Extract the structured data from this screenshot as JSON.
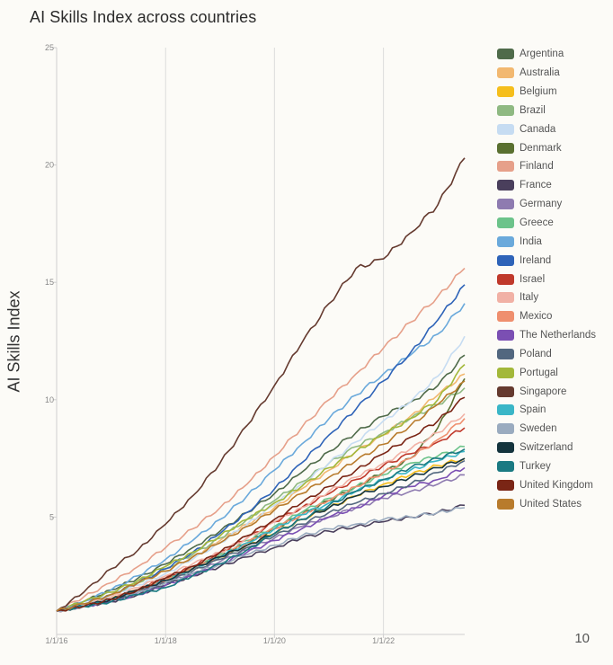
{
  "chart_data": {
    "type": "line",
    "title": "AI Skills Index across countries",
    "ylabel": "AI Skills Index",
    "xlabel": "",
    "ylim": [
      0,
      25
    ],
    "y_ticks": [
      "5",
      "10",
      "15",
      "20",
      "25"
    ],
    "x_ticks": [
      "1/1/16",
      "1/1/18",
      "1/1/20",
      "1/1/22"
    ],
    "x_range": [
      "2016-01-01",
      "2023-06-30"
    ],
    "grid": "vertical at x ticks",
    "legend_position": "right",
    "x": [
      "2016-01-01",
      "2016-07-01",
      "2017-01-01",
      "2017-07-01",
      "2018-01-01",
      "2018-07-01",
      "2019-01-01",
      "2019-07-01",
      "2020-01-01",
      "2020-07-01",
      "2021-01-01",
      "2021-07-01",
      "2022-01-01",
      "2022-07-01",
      "2023-01-01",
      "2023-06-30"
    ],
    "series": [
      {
        "name": "Argentina",
        "color": "#4f6b4a",
        "values": [
          1.0,
          1.4,
          1.9,
          2.4,
          3.0,
          3.7,
          4.4,
          5.2,
          6.0,
          6.9,
          7.8,
          8.6,
          9.3,
          9.9,
          10.6,
          11.9
        ]
      },
      {
        "name": "Australia",
        "color": "#f2b870",
        "values": [
          1.0,
          1.3,
          1.7,
          2.2,
          2.7,
          3.3,
          4.0,
          4.7,
          5.4,
          6.2,
          7.0,
          7.8,
          8.5,
          9.3,
          10.2,
          11.1
        ]
      },
      {
        "name": "Belgium",
        "color": "#f5be1c",
        "values": [
          1.0,
          1.2,
          1.5,
          1.9,
          2.3,
          2.8,
          3.3,
          3.8,
          4.3,
          4.9,
          5.4,
          5.9,
          6.4,
          6.8,
          7.2,
          7.5
        ]
      },
      {
        "name": "Brazil",
        "color": "#8fb982",
        "values": [
          1.0,
          1.3,
          1.7,
          2.2,
          2.8,
          3.4,
          4.1,
          4.9,
          5.7,
          6.5,
          7.3,
          8.0,
          8.6,
          9.2,
          9.8,
          10.5
        ]
      },
      {
        "name": "Canada",
        "color": "#c6dcf2",
        "values": [
          1.0,
          1.3,
          1.7,
          2.1,
          2.6,
          3.2,
          3.9,
          4.7,
          5.5,
          6.4,
          7.3,
          8.2,
          9.1,
          9.9,
          11.0,
          12.7
        ]
      },
      {
        "name": "Denmark",
        "color": "#5a7030",
        "values": [
          1.0,
          1.2,
          1.5,
          1.9,
          2.3,
          2.8,
          3.3,
          3.9,
          4.5,
          5.1,
          5.7,
          6.3,
          6.9,
          7.5,
          8.8,
          10.9
        ]
      },
      {
        "name": "Finland",
        "color": "#e6a08a",
        "values": [
          1.0,
          1.6,
          2.2,
          2.9,
          3.7,
          4.5,
          5.4,
          6.4,
          7.6,
          8.8,
          10.0,
          11.1,
          12.2,
          13.3,
          14.4,
          15.6
        ]
      },
      {
        "name": "France",
        "color": "#4a3f5c",
        "values": [
          1.0,
          1.2,
          1.4,
          1.7,
          2.1,
          2.5,
          2.9,
          3.3,
          3.7,
          4.1,
          4.4,
          4.6,
          4.8,
          5.0,
          5.2,
          5.5
        ]
      },
      {
        "name": "Germany",
        "color": "#8e7bb0",
        "values": [
          1.0,
          1.2,
          1.5,
          1.8,
          2.2,
          2.6,
          3.1,
          3.6,
          4.1,
          4.6,
          5.0,
          5.4,
          5.8,
          6.1,
          6.4,
          6.8
        ]
      },
      {
        "name": "Greece",
        "color": "#6cc38a",
        "values": [
          1.0,
          1.2,
          1.5,
          1.9,
          2.3,
          2.8,
          3.4,
          4.0,
          4.6,
          5.2,
          5.8,
          6.3,
          6.8,
          7.3,
          7.6,
          8.0
        ]
      },
      {
        "name": "India",
        "color": "#6aa9db",
        "values": [
          1.0,
          1.4,
          1.9,
          2.5,
          3.2,
          4.0,
          4.9,
          5.9,
          7.0,
          8.1,
          9.2,
          10.2,
          11.1,
          11.9,
          12.8,
          14.1
        ]
      },
      {
        "name": "Ireland",
        "color": "#2e63b8",
        "values": [
          1.0,
          1.3,
          1.7,
          2.2,
          2.8,
          3.5,
          4.3,
          5.2,
          6.2,
          7.3,
          8.5,
          9.6,
          10.8,
          12.0,
          13.4,
          14.9
        ]
      },
      {
        "name": "Israel",
        "color": "#c0392b",
        "values": [
          1.0,
          1.2,
          1.5,
          1.9,
          2.4,
          2.9,
          3.5,
          4.1,
          4.8,
          5.4,
          6.0,
          6.6,
          7.2,
          7.7,
          8.2,
          8.8
        ]
      },
      {
        "name": "Italy",
        "color": "#f1b1a5",
        "values": [
          1.0,
          1.3,
          1.6,
          2.0,
          2.5,
          3.0,
          3.5,
          4.1,
          4.8,
          5.4,
          6.1,
          6.7,
          7.3,
          7.9,
          8.6,
          9.4
        ]
      },
      {
        "name": "Mexico",
        "color": "#ef8f6e",
        "values": [
          1.0,
          1.2,
          1.5,
          1.9,
          2.3,
          2.8,
          3.3,
          3.9,
          4.5,
          5.1,
          5.7,
          6.3,
          6.9,
          7.5,
          8.3,
          9.2
        ]
      },
      {
        "name": "The Netherlands",
        "color": "#7b4fb3",
        "values": [
          1.0,
          1.2,
          1.4,
          1.7,
          2.1,
          2.5,
          3.0,
          3.5,
          4.0,
          4.5,
          5.0,
          5.4,
          5.9,
          6.3,
          6.6,
          7.1
        ]
      },
      {
        "name": "Poland",
        "color": "#52677f",
        "values": [
          1.0,
          1.2,
          1.5,
          1.8,
          2.2,
          2.7,
          3.2,
          3.7,
          4.2,
          4.7,
          5.2,
          5.6,
          6.0,
          6.4,
          6.9,
          7.4
        ]
      },
      {
        "name": "Portugal",
        "color": "#a3b83a",
        "values": [
          1.0,
          1.4,
          1.8,
          2.3,
          2.9,
          3.5,
          4.2,
          4.9,
          5.6,
          6.3,
          7.1,
          7.8,
          8.5,
          9.2,
          10.0,
          11.5
        ]
      },
      {
        "name": "Singapore",
        "color": "#653a2f",
        "values": [
          1.0,
          1.8,
          2.8,
          3.6,
          4.7,
          5.9,
          7.3,
          8.9,
          10.6,
          12.4,
          14.1,
          15.6,
          16.0,
          17.1,
          18.3,
          20.3
        ]
      },
      {
        "name": "Spain",
        "color": "#3ab6c7",
        "values": [
          1.0,
          1.2,
          1.5,
          1.9,
          2.3,
          2.8,
          3.3,
          3.9,
          4.5,
          5.1,
          5.6,
          6.1,
          6.6,
          7.0,
          7.4,
          7.8
        ]
      },
      {
        "name": "Sweden",
        "color": "#9aabbf",
        "values": [
          1.0,
          1.2,
          1.5,
          1.8,
          2.2,
          2.6,
          3.0,
          3.4,
          3.8,
          4.2,
          4.5,
          4.7,
          4.9,
          5.0,
          5.2,
          5.4
        ]
      },
      {
        "name": "Switzerland",
        "color": "#14343d",
        "values": [
          1.0,
          1.2,
          1.5,
          1.9,
          2.3,
          2.8,
          3.3,
          3.8,
          4.3,
          4.9,
          5.4,
          5.9,
          6.3,
          6.7,
          7.1,
          7.5
        ]
      },
      {
        "name": "Turkey",
        "color": "#1a7a82",
        "values": [
          1.0,
          1.2,
          1.4,
          1.7,
          2.0,
          2.5,
          3.0,
          3.6,
          4.3,
          4.9,
          5.5,
          6.1,
          6.6,
          7.1,
          7.5,
          7.9
        ]
      },
      {
        "name": "United Kingdom",
        "color": "#7a2515",
        "values": [
          1.0,
          1.2,
          1.5,
          1.9,
          2.4,
          2.9,
          3.5,
          4.2,
          4.9,
          5.6,
          6.3,
          7.0,
          7.7,
          8.4,
          9.1,
          10.1
        ]
      },
      {
        "name": "United States",
        "color": "#b87b2c",
        "values": [
          1.0,
          1.3,
          1.7,
          2.2,
          2.7,
          3.3,
          3.9,
          4.6,
          5.3,
          6.0,
          6.7,
          7.4,
          8.1,
          8.9,
          9.8,
          10.8
        ]
      }
    ]
  },
  "page": {
    "number": "10"
  }
}
